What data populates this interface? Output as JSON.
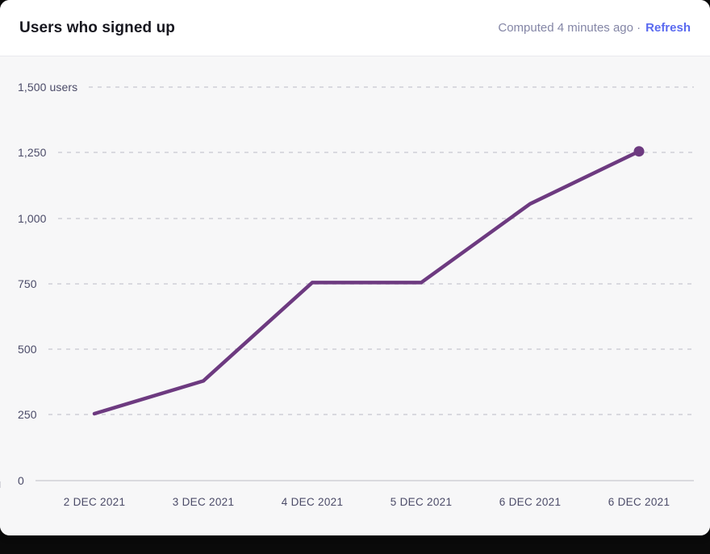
{
  "header": {
    "title": "Users who signed up",
    "computed_text": "Computed 4 minutes ago ·",
    "refresh_label": "Refresh"
  },
  "colors": {
    "line": "#6d3a80",
    "refresh_link": "#5a6af0",
    "chart_background": "#f7f7f8",
    "header_background": "#ffffff",
    "grid": "#d9d9df",
    "axis_label": "#4b4b68",
    "page_background": "#0a0a0a"
  },
  "chart_data": {
    "type": "line",
    "title": "Users who signed up",
    "x": [
      "2 DEC 2021",
      "3 DEC 2021",
      "4 DEC 2021",
      "5 DEC 2021",
      "6 DEC 2021",
      "6 DEC 2021"
    ],
    "series": [
      {
        "name": "Users who signed up",
        "values": [
          255,
          380,
          755,
          755,
          1055,
          1255
        ]
      }
    ],
    "y_ticks": [
      "1,500 users",
      "1,250",
      "1,000",
      "750",
      "500",
      "250",
      "0"
    ],
    "y_tick_values": [
      1500,
      1250,
      1000,
      750,
      500,
      250,
      0
    ],
    "ylim": [
      0,
      1500
    ],
    "xlabel": "",
    "ylabel": "users",
    "grid": "horizontal-dashed",
    "legend_position": "none",
    "last_point_marker": true
  }
}
